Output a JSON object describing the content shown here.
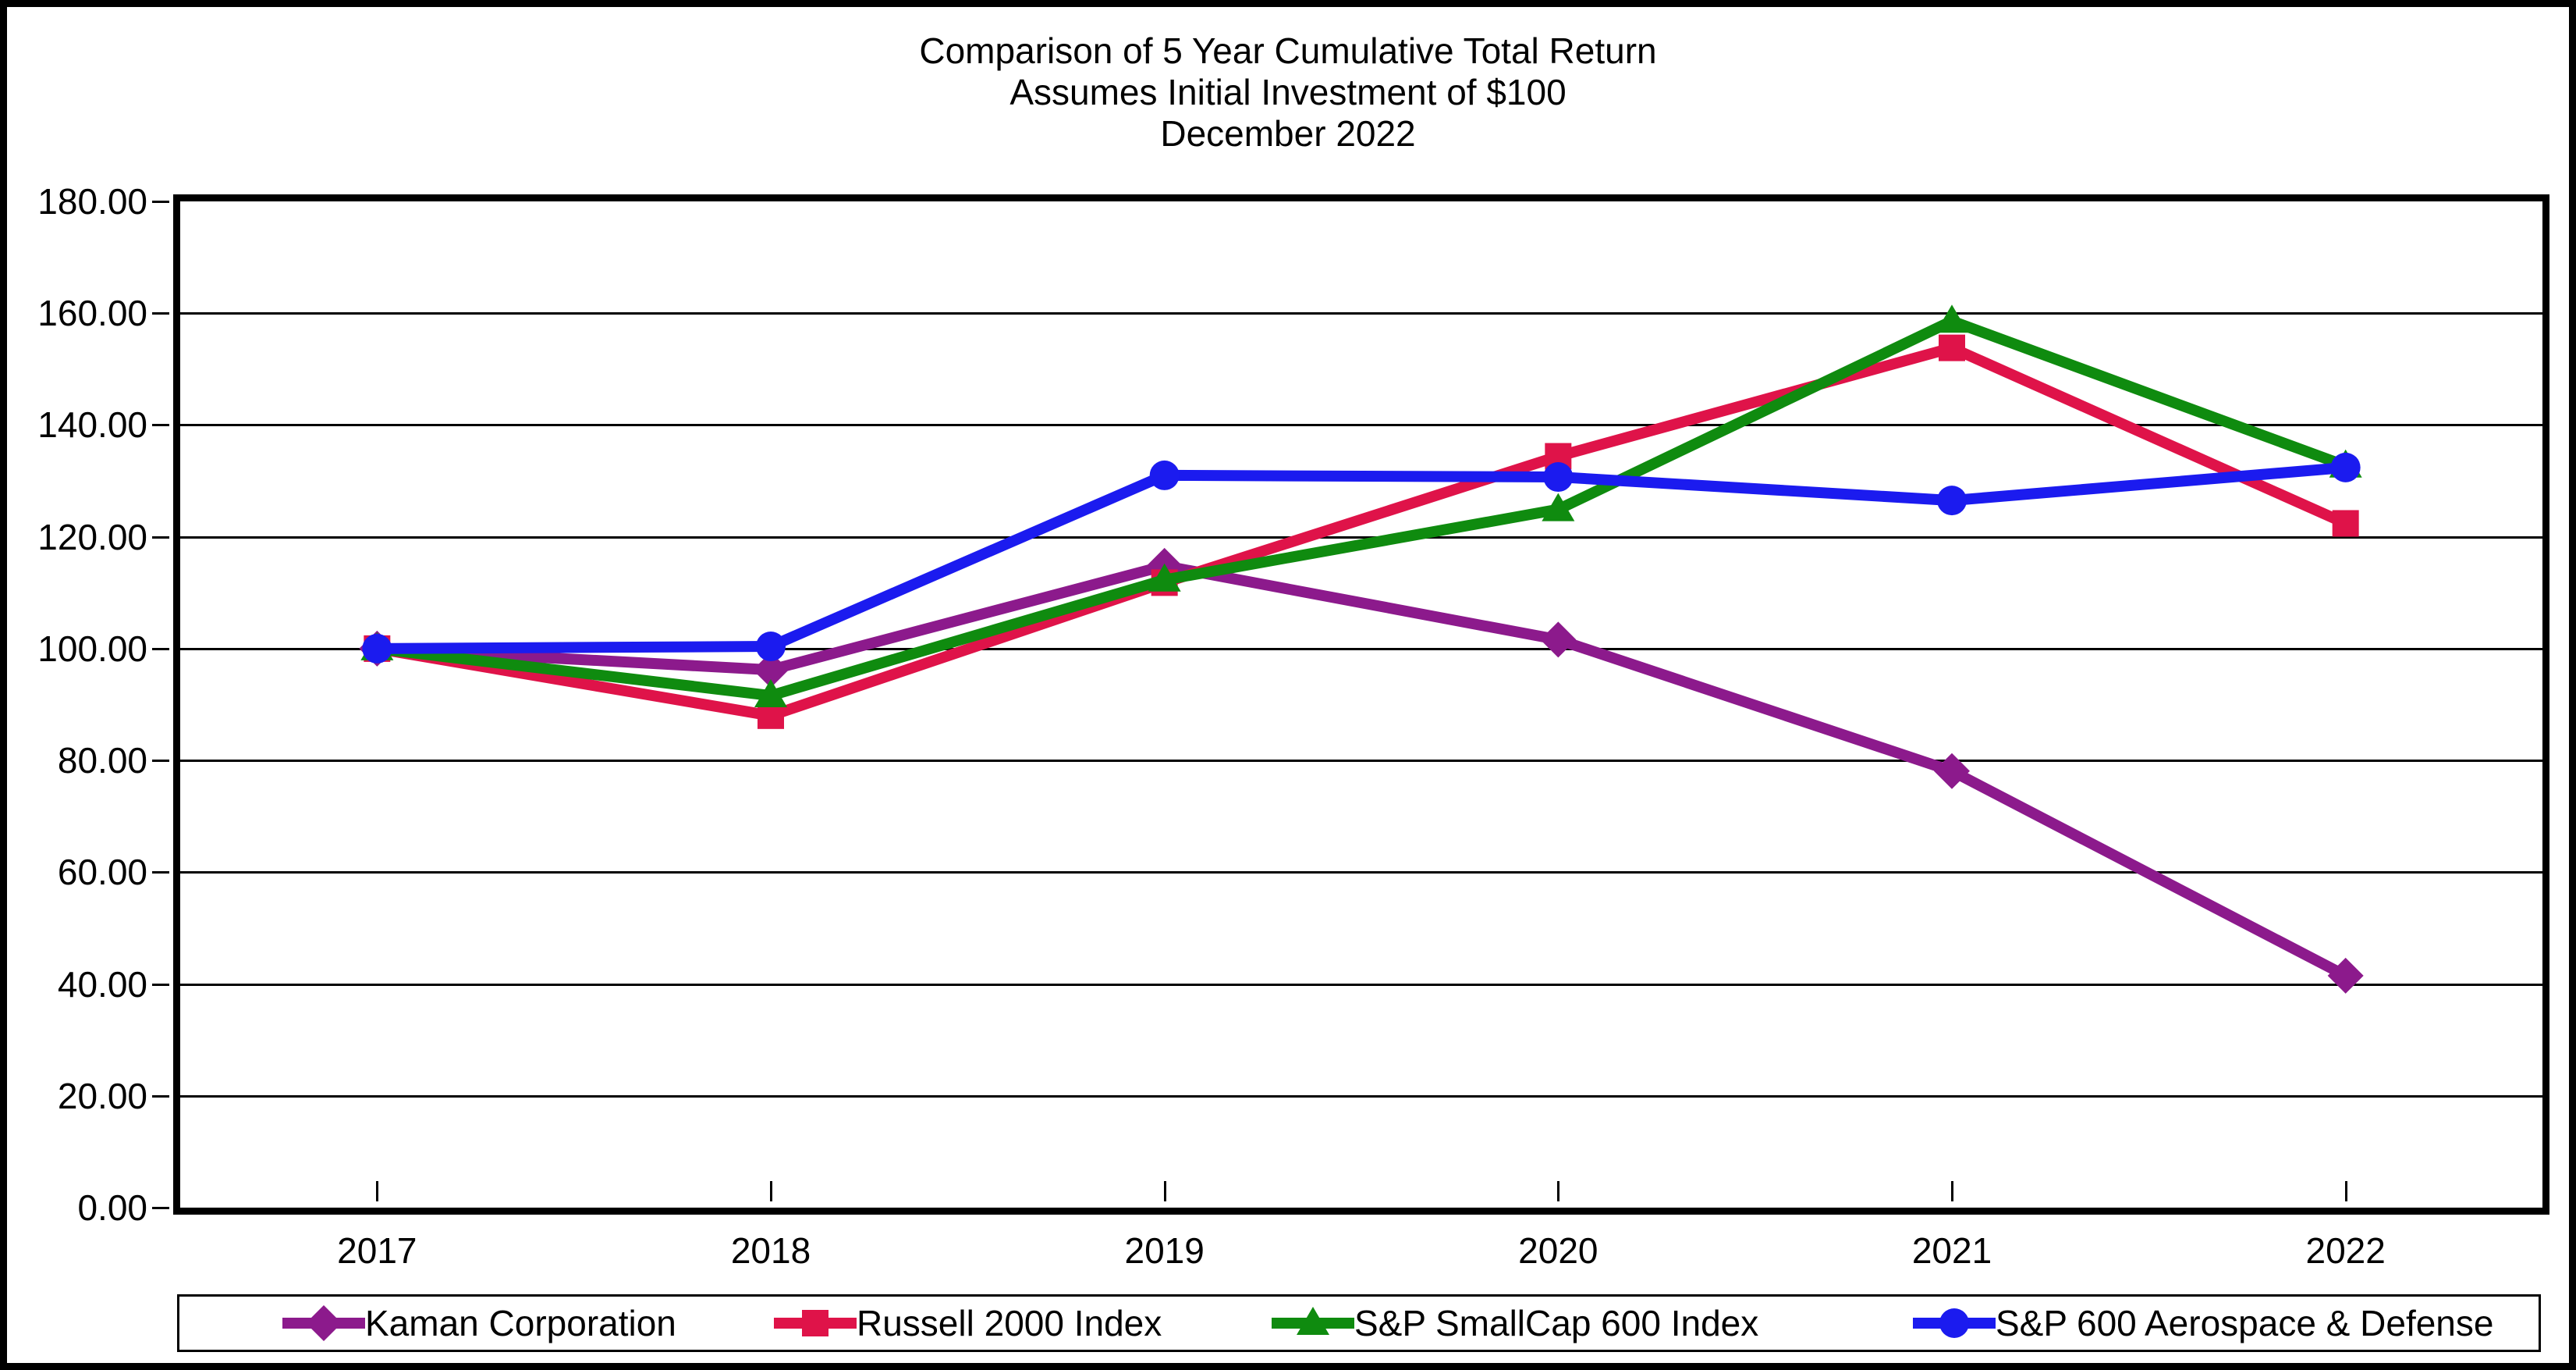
{
  "title": {
    "line1": "Comparison of 5 Year Cumulative Total Return",
    "line2": "Assumes Initial Investment of $100",
    "line3": "December 2022"
  },
  "chart_data": {
    "type": "line",
    "title": "Comparison of 5 Year Cumulative Total Return | Assumes Initial Investment of $100 | December 2022",
    "xlabel": "",
    "ylabel": "",
    "categories": [
      "2017",
      "2018",
      "2019",
      "2020",
      "2021",
      "2022"
    ],
    "series": [
      {
        "name": "Kaman Corporation",
        "color": "#8C1A8C",
        "marker": "diamond",
        "values": [
          100.0,
          96.2,
          114.8,
          101.6,
          78.1,
          41.5
        ]
      },
      {
        "name": "Russell 2000 Index",
        "color": "#DF1349",
        "marker": "square",
        "values": [
          100.0,
          88.0,
          111.8,
          134.4,
          153.8,
          122.4
        ]
      },
      {
        "name": "S&P SmallCap 600 Index",
        "color": "#0F8B0F",
        "marker": "triangle",
        "values": [
          100.0,
          91.6,
          112.3,
          124.9,
          158.6,
          132.7
        ]
      },
      {
        "name": "S&P 600 Aerospace & Defense",
        "color": "#1B1BEF",
        "marker": "circle",
        "values": [
          100.0,
          100.4,
          131.0,
          130.7,
          126.5,
          132.4
        ]
      }
    ],
    "ylim": [
      0,
      180
    ],
    "y_tick_step": 20,
    "y_tick_labels": [
      "0.00",
      "20.00",
      "40.00",
      "60.00",
      "80.00",
      "100.00",
      "120.00",
      "140.00",
      "160.00",
      "180.00"
    ],
    "grid": true,
    "legend_position": "bottom"
  }
}
